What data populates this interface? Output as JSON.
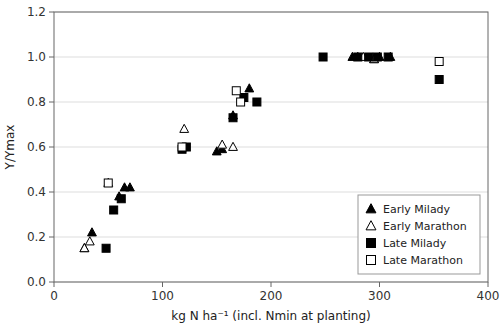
{
  "chart_data": {
    "type": "scatter",
    "xlabel": "kg N ha⁻¹ (incl. Nmin at planting)",
    "ylabel": "Y/Ymax",
    "xlim": [
      0,
      400
    ],
    "ylim": [
      0.0,
      1.2
    ],
    "xticks": [
      0,
      100,
      200,
      300,
      400
    ],
    "yticks": [
      {
        "value": 0.0,
        "label": "0.0"
      },
      0.2,
      0.4,
      0.6,
      0.8,
      {
        "value": 1.0,
        "label": "1.0"
      },
      1.2
    ],
    "grid": "y",
    "legend": "lower right",
    "series": [
      {
        "name": "Early Milady",
        "color": "black",
        "marker": "filled-triangle",
        "x": [
          28,
          35,
          60,
          65,
          70,
          150,
          155,
          165,
          180,
          275,
          280,
          295,
          300,
          310
        ],
        "values": [
          0.15,
          0.22,
          0.38,
          0.42,
          0.42,
          0.58,
          0.59,
          0.74,
          0.86,
          1.0,
          1.0,
          0.99,
          1.0,
          1.0
        ]
      },
      {
        "name": "Early Marathon",
        "color": "black",
        "marker": "open-triangle",
        "x": [
          28,
          33,
          50,
          120,
          155,
          165,
          285,
          295
        ],
        "values": [
          0.15,
          0.18,
          0.44,
          0.68,
          0.61,
          0.6,
          1.0,
          0.99
        ]
      },
      {
        "name": "Late Milady",
        "color": "black",
        "marker": "filled-square",
        "x": [
          48,
          55,
          62,
          118,
          122,
          165,
          175,
          187,
          248,
          280,
          290,
          298,
          308,
          355
        ],
        "values": [
          0.15,
          0.32,
          0.37,
          0.59,
          0.6,
          0.73,
          0.82,
          0.8,
          1.0,
          1.0,
          1.0,
          1.0,
          1.0,
          0.9
        ]
      },
      {
        "name": "Late Marathon",
        "color": "black",
        "marker": "open-square",
        "x": [
          50,
          118,
          168,
          172,
          355
        ],
        "values": [
          0.44,
          0.6,
          0.85,
          0.8,
          0.98
        ]
      }
    ]
  }
}
